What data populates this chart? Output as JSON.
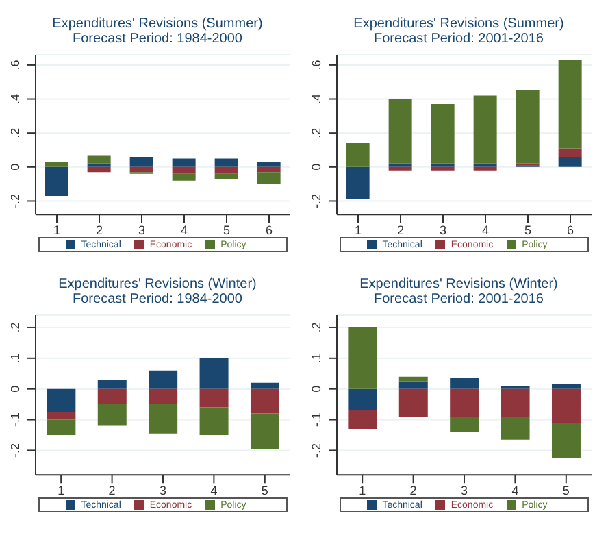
{
  "chart_data": [
    {
      "type": "bar",
      "title": "Expenditures' Revisions (Summer)",
      "subtitle": "Forecast Period: 1984-2000",
      "categories": [
        "1",
        "2",
        "3",
        "4",
        "5",
        "6"
      ],
      "stacked": true,
      "legend": "bottom",
      "grid": "y",
      "ylim": [
        -0.28,
        0.66
      ],
      "yticks": [
        {
          "value": -0.2,
          "label": "-.2"
        },
        {
          "value": 0,
          "label": "0"
        },
        {
          "value": 0.2,
          "label": ".2"
        },
        {
          "value": 0.4,
          "label": ".4"
        },
        {
          "value": 0.6,
          "label": ".6"
        }
      ],
      "series": [
        {
          "name": "Technical",
          "color": "#1a476f",
          "values": [
            -0.17,
            0.02,
            0.06,
            0.05,
            0.05,
            0.03
          ]
        },
        {
          "name": "Economic",
          "color": "#90353b",
          "values": [
            0,
            -0.03,
            -0.03,
            -0.04,
            -0.04,
            -0.03
          ]
        },
        {
          "name": "Policy",
          "color": "#55752f",
          "values": [
            0.03,
            0.05,
            -0.01,
            -0.04,
            -0.03,
            -0.07
          ]
        }
      ]
    },
    {
      "type": "bar",
      "title": "Expenditures' Revisions (Summer)",
      "subtitle": "Forecast Period: 2001-2016",
      "categories": [
        "1",
        "2",
        "3",
        "4",
        "5",
        "6"
      ],
      "stacked": true,
      "legend": "bottom",
      "grid": "y",
      "ylim": [
        -0.28,
        0.66
      ],
      "yticks": [
        {
          "value": -0.2,
          "label": "-.2"
        },
        {
          "value": 0,
          "label": "0"
        },
        {
          "value": 0.2,
          "label": ".2"
        },
        {
          "value": 0.4,
          "label": ".4"
        },
        {
          "value": 0.6,
          "label": ".6"
        }
      ],
      "series": [
        {
          "name": "Technical",
          "color": "#1a476f",
          "values": [
            -0.19,
            0.02,
            0.02,
            0.02,
            0.01,
            0.06
          ]
        },
        {
          "name": "Economic",
          "color": "#90353b",
          "values": [
            0,
            -0.02,
            -0.02,
            -0.02,
            0.01,
            0.05
          ]
        },
        {
          "name": "Policy",
          "color": "#55752f",
          "values": [
            0.14,
            0.38,
            0.35,
            0.4,
            0.43,
            0.52
          ]
        }
      ]
    },
    {
      "type": "bar",
      "title": "Expenditures' Revisions (Winter)",
      "subtitle": "Forecast Period: 1984-2000",
      "categories": [
        "1",
        "2",
        "3",
        "4",
        "5"
      ],
      "stacked": true,
      "legend": "bottom",
      "grid": "y",
      "ylim": [
        -0.28,
        0.24
      ],
      "yticks": [
        {
          "value": -0.2,
          "label": "-.2"
        },
        {
          "value": -0.1,
          "label": "-.1"
        },
        {
          "value": 0,
          "label": "0"
        },
        {
          "value": 0.1,
          "label": ".1"
        },
        {
          "value": 0.2,
          "label": ".2"
        }
      ],
      "series": [
        {
          "name": "Technical",
          "color": "#1a476f",
          "values": [
            -0.075,
            0.03,
            0.06,
            0.1,
            0.02
          ]
        },
        {
          "name": "Economic",
          "color": "#90353b",
          "values": [
            -0.025,
            -0.05,
            -0.05,
            -0.06,
            -0.08
          ]
        },
        {
          "name": "Policy",
          "color": "#55752f",
          "values": [
            -0.05,
            -0.07,
            -0.095,
            -0.09,
            -0.115
          ]
        }
      ]
    },
    {
      "type": "bar",
      "title": "Expenditures' Revisions (Winter)",
      "subtitle": "Forecast Period: 2001-2016",
      "categories": [
        "1",
        "2",
        "3",
        "4",
        "5"
      ],
      "stacked": true,
      "legend": "bottom",
      "grid": "y",
      "ylim": [
        -0.28,
        0.24
      ],
      "yticks": [
        {
          "value": -0.2,
          "label": "-.2"
        },
        {
          "value": -0.1,
          "label": "-.1"
        },
        {
          "value": 0,
          "label": "0"
        },
        {
          "value": 0.1,
          "label": ".1"
        },
        {
          "value": 0.2,
          "label": ".2"
        }
      ],
      "series": [
        {
          "name": "Technical",
          "color": "#1a476f",
          "values": [
            -0.07,
            0.025,
            0.035,
            0.01,
            0.015
          ]
        },
        {
          "name": "Economic",
          "color": "#90353b",
          "values": [
            -0.06,
            -0.09,
            -0.09,
            -0.09,
            -0.11
          ]
        },
        {
          "name": "Policy",
          "color": "#55752f",
          "values": [
            0.2,
            0.015,
            -0.05,
            -0.075,
            -0.115
          ]
        }
      ]
    }
  ]
}
